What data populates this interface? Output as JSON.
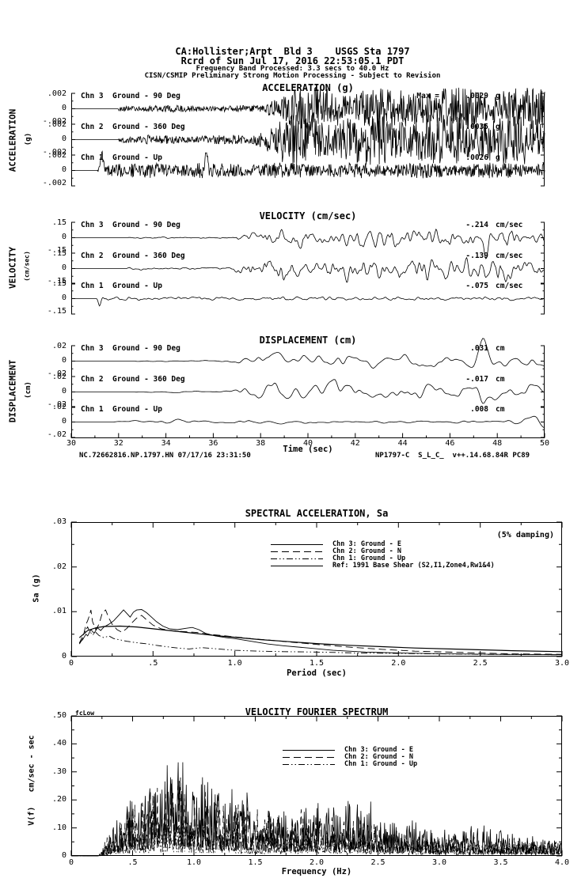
{
  "header": {
    "line1": "CA:Hollister;Arpt  Bld 3    USGS Sta 1797",
    "line2": "Rcrd of Sun Jul 17, 2016 22:53:05.1 PDT",
    "line3": "Frequency Band Processed: 3.3 secs to 40.0 Hz",
    "line4": "CISN/CSMIP Preliminary Strong Motion Processing - Subject to Revision"
  },
  "footer": {
    "left": "NC.72662816.NP.1797.HN 07/17/16 23:31:50",
    "right": "NP1797-C  S_L_C_  v++.14.68.84R PC89"
  },
  "time_axis": {
    "label": "Time (sec)",
    "ticks": [
      "30",
      "32",
      "34",
      "36",
      "38",
      "40",
      "42",
      "44",
      "46",
      "48",
      "50"
    ],
    "min": 30,
    "max": 50
  },
  "chart_data": [
    {
      "type": "line",
      "title": "ACCELERATION (g)",
      "group_label": "ACCELERATION",
      "group_units": "(g)",
      "ytick_labels": [
        ".002",
        "0",
        "-.002"
      ],
      "xlim": [
        30,
        50
      ],
      "n": 900,
      "channels": [
        {
          "label": "Chn 3  Ground - 90 Deg",
          "max_prefix": "Max =",
          "max_value": ".0029",
          "max_unit": "g",
          "peak": 1.45,
          "seed": 301,
          "quiet": 0.1,
          "calm": 0.4,
          "small": 0.16,
          "smooth": 0,
          "spikes": []
        },
        {
          "label": "Chn 2  Ground - 360 Deg",
          "max_prefix": "",
          "max_value": ".0035",
          "max_unit": "g",
          "peak": 1.75,
          "seed": 302,
          "quiet": 0.1,
          "calm": 0.38,
          "small": 0.18,
          "smooth": 0,
          "spikes": []
        },
        {
          "label": "Chn 1  Ground - Up",
          "max_prefix": "",
          "max_value": ".0026",
          "max_unit": "g",
          "peak": 1.3,
          "seed": 303,
          "quiet": 0.055,
          "calm": 0.98,
          "small": 0.5,
          "smooth": 0,
          "spikes": [
            {
              "at": 0.065,
              "amp": 0.9,
              "w": 0.004
            },
            {
              "at": 0.285,
              "amp": 1.1,
              "w": 0.003
            }
          ]
        }
      ]
    },
    {
      "type": "line",
      "title": "VELOCITY (cm/sec)",
      "group_label": "VELOCITY",
      "group_units": "(cm/sec)",
      "ytick_labels": [
        ".15",
        "0",
        "-.15"
      ],
      "xlim": [
        30,
        50
      ],
      "n": 620,
      "channels": [
        {
          "label": "Chn 3  Ground - 90 Deg",
          "max_prefix": "",
          "max_value": "-.214",
          "max_unit": "cm/sec",
          "peak": 1.43,
          "seed": 311,
          "quiet": 0.12,
          "calm": 0.34,
          "small": 0.1,
          "smooth": 3,
          "spikes": [
            {
              "at": 0.875,
              "amp": -1.2,
              "w": 0.006
            }
          ]
        },
        {
          "label": "Chn 2  Ground - 360 Deg",
          "max_prefix": "",
          "max_value": "-.139",
          "max_unit": "cm/sec",
          "peak": 0.93,
          "seed": 312,
          "quiet": 0.12,
          "calm": 0.33,
          "small": 0.1,
          "smooth": 3,
          "spikes": []
        },
        {
          "label": "Chn 1  Ground - Up",
          "max_prefix": "",
          "max_value": "-.075",
          "max_unit": "cm/sec",
          "peak": 0.5,
          "seed": 313,
          "quiet": 0.055,
          "calm": 0.95,
          "small": 0.42,
          "smooth": 3,
          "spikes": [
            {
              "at": 0.06,
              "amp": -0.8,
              "w": 0.004
            }
          ]
        }
      ]
    },
    {
      "type": "line",
      "title": "DISPLACEMENT (cm)",
      "group_label": "DISPLACEMENT",
      "group_units": "(cm)",
      "ytick_labels": [
        ".02",
        "0",
        "-.02"
      ],
      "xlim": [
        30,
        50
      ],
      "n": 360,
      "channels": [
        {
          "label": "Chn 3  Ground - 90 Deg",
          "max_prefix": "",
          "max_value": ".031",
          "max_unit": "cm",
          "peak": 1.55,
          "seed": 321,
          "quiet": 0.14,
          "calm": 0.33,
          "small": 0.08,
          "smooth": 5,
          "spikes": [
            {
              "at": 0.868,
              "amp": 1.3,
              "w": 0.012
            }
          ]
        },
        {
          "label": "Chn 2  Ground - 360 Deg",
          "max_prefix": "",
          "max_value": "-.017",
          "max_unit": "cm",
          "peak": 0.85,
          "seed": 322,
          "quiet": 0.14,
          "calm": 0.32,
          "small": 0.08,
          "smooth": 5,
          "spikes": []
        },
        {
          "label": "Chn 1  Ground - Up",
          "max_prefix": "",
          "max_value": ".008",
          "max_unit": "cm",
          "peak": 0.4,
          "seed": 323,
          "quiet": 0.1,
          "calm": 0.9,
          "small": 0.3,
          "smooth": 5,
          "spikes": []
        }
      ]
    },
    {
      "type": "line",
      "title": "SPECTRAL ACCELERATION, Sa",
      "damping_note": "(5% damping)",
      "xlabel": "Period (sec)",
      "ylabel": "Sa (g)",
      "xlim": [
        0,
        3
      ],
      "ylim": [
        0,
        0.03
      ],
      "xticks": [
        "0",
        ".5",
        "1.0",
        "1.5",
        "2.0",
        "2.5",
        "3.0"
      ],
      "yticks": [
        ".03",
        ".02",
        ".01",
        "0"
      ],
      "series": [
        {
          "name": "Chn 3: Ground - E",
          "dash": "solid",
          "points": [
            [
              0.05,
              0.003
            ],
            [
              0.07,
              0.0038
            ],
            [
              0.09,
              0.005
            ],
            [
              0.1,
              0.0046
            ],
            [
              0.12,
              0.006
            ],
            [
              0.14,
              0.0052
            ],
            [
              0.16,
              0.0064
            ],
            [
              0.18,
              0.0058
            ],
            [
              0.2,
              0.0066
            ],
            [
              0.23,
              0.0072
            ],
            [
              0.26,
              0.008
            ],
            [
              0.29,
              0.0092
            ],
            [
              0.32,
              0.0104
            ],
            [
              0.34,
              0.0096
            ],
            [
              0.36,
              0.0088
            ],
            [
              0.38,
              0.0099
            ],
            [
              0.4,
              0.0104
            ],
            [
              0.43,
              0.0105
            ],
            [
              0.46,
              0.0098
            ],
            [
              0.49,
              0.0088
            ],
            [
              0.52,
              0.0078
            ],
            [
              0.56,
              0.0068
            ],
            [
              0.6,
              0.0062
            ],
            [
              0.65,
              0.006
            ],
            [
              0.7,
              0.0063
            ],
            [
              0.74,
              0.0065
            ],
            [
              0.78,
              0.006
            ],
            [
              0.82,
              0.0052
            ],
            [
              0.88,
              0.0046
            ],
            [
              0.95,
              0.0042
            ],
            [
              1.0,
              0.004
            ],
            [
              1.1,
              0.0034
            ],
            [
              1.2,
              0.0028
            ],
            [
              1.3,
              0.0024
            ],
            [
              1.45,
              0.0019
            ],
            [
              1.6,
              0.0014
            ],
            [
              1.8,
              0.001
            ],
            [
              2.0,
              0.0008
            ],
            [
              2.3,
              0.0006
            ],
            [
              2.6,
              0.0005
            ],
            [
              3.0,
              0.0004
            ]
          ]
        },
        {
          "name": "Chn 2: Ground - N",
          "dash": "longdash",
          "points": [
            [
              0.05,
              0.0028
            ],
            [
              0.07,
              0.004
            ],
            [
              0.09,
              0.0072
            ],
            [
              0.1,
              0.008
            ],
            [
              0.11,
              0.009
            ],
            [
              0.12,
              0.0104
            ],
            [
              0.13,
              0.0078
            ],
            [
              0.15,
              0.006
            ],
            [
              0.17,
              0.0072
            ],
            [
              0.19,
              0.0098
            ],
            [
              0.21,
              0.0104
            ],
            [
              0.23,
              0.0086
            ],
            [
              0.25,
              0.0072
            ],
            [
              0.28,
              0.006
            ],
            [
              0.31,
              0.0054
            ],
            [
              0.34,
              0.0063
            ],
            [
              0.37,
              0.0075
            ],
            [
              0.4,
              0.0086
            ],
            [
              0.43,
              0.0092
            ],
            [
              0.46,
              0.0082
            ],
            [
              0.5,
              0.007
            ],
            [
              0.55,
              0.0062
            ],
            [
              0.6,
              0.0058
            ],
            [
              0.68,
              0.0056
            ],
            [
              0.76,
              0.0054
            ],
            [
              0.84,
              0.005
            ],
            [
              0.92,
              0.0047
            ],
            [
              1.0,
              0.0044
            ],
            [
              1.1,
              0.004
            ],
            [
              1.2,
              0.0037
            ],
            [
              1.35,
              0.0032
            ],
            [
              1.5,
              0.0027
            ],
            [
              1.7,
              0.0021
            ],
            [
              1.9,
              0.0016
            ],
            [
              2.1,
              0.0012
            ],
            [
              2.4,
              0.0009
            ],
            [
              2.7,
              0.0006
            ],
            [
              3.0,
              0.0005
            ]
          ]
        },
        {
          "name": "Chn 1: Ground - Up",
          "dash": "dashdotdot",
          "points": [
            [
              0.05,
              0.003
            ],
            [
              0.07,
              0.0046
            ],
            [
              0.09,
              0.006
            ],
            [
              0.1,
              0.0066
            ],
            [
              0.11,
              0.0058
            ],
            [
              0.13,
              0.0048
            ],
            [
              0.15,
              0.0054
            ],
            [
              0.17,
              0.0047
            ],
            [
              0.2,
              0.0042
            ],
            [
              0.23,
              0.0046
            ],
            [
              0.26,
              0.004
            ],
            [
              0.3,
              0.0037
            ],
            [
              0.34,
              0.0034
            ],
            [
              0.38,
              0.0032
            ],
            [
              0.42,
              0.003
            ],
            [
              0.47,
              0.0028
            ],
            [
              0.52,
              0.0025
            ],
            [
              0.58,
              0.0022
            ],
            [
              0.65,
              0.0019
            ],
            [
              0.72,
              0.0017
            ],
            [
              0.8,
              0.002
            ],
            [
              0.9,
              0.0017
            ],
            [
              1.0,
              0.0014
            ],
            [
              1.15,
              0.0012
            ],
            [
              1.3,
              0.0011
            ],
            [
              1.5,
              0.001
            ],
            [
              1.75,
              0.0008
            ],
            [
              2.0,
              0.0007
            ],
            [
              2.5,
              0.0005
            ],
            [
              3.0,
              0.0004
            ]
          ]
        },
        {
          "name": "Ref: 1991 Base Shear (S2,I1,Zone4,Rw1&4)",
          "dash": "solid",
          "points": [
            [
              0.05,
              0.0042
            ],
            [
              0.1,
              0.0058
            ],
            [
              0.15,
              0.0064
            ],
            [
              0.2,
              0.0067
            ],
            [
              0.3,
              0.0068
            ],
            [
              0.4,
              0.0066
            ],
            [
              0.5,
              0.0062
            ],
            [
              0.6,
              0.0058
            ],
            [
              0.7,
              0.0054
            ],
            [
              0.8,
              0.005
            ],
            [
              0.9,
              0.0046
            ],
            [
              1.0,
              0.0043
            ],
            [
              1.15,
              0.0038
            ],
            [
              1.3,
              0.0034
            ],
            [
              1.5,
              0.0029
            ],
            [
              1.7,
              0.0025
            ],
            [
              1.9,
              0.0022
            ],
            [
              2.1,
              0.0019
            ],
            [
              2.4,
              0.0016
            ],
            [
              2.7,
              0.0013
            ],
            [
              3.0,
              0.0011
            ]
          ]
        }
      ]
    },
    {
      "type": "line",
      "title": "VELOCITY FOURIER SPECTRUM",
      "marker": "fcLow",
      "xlabel": "Frequency (Hz)",
      "ylabel": "V(f)   cm/sec - sec",
      "xlim": [
        0,
        4
      ],
      "ylim": [
        0,
        0.5
      ],
      "xticks": [
        "0",
        ".5",
        "1.0",
        "1.5",
        "2.0",
        "2.5",
        "3.0",
        "3.5",
        "4.0"
      ],
      "yticks": [
        ".50",
        ".40",
        ".30",
        ".20",
        ".10",
        "0"
      ],
      "series": [
        {
          "name": "Chn 3: Ground - E",
          "dash": "solid",
          "seed": 41,
          "envelope": [
            [
              0.22,
              0
            ],
            [
              0.35,
              0.1
            ],
            [
              0.5,
              0.22
            ],
            [
              0.7,
              0.25
            ],
            [
              0.9,
              0.35
            ],
            [
              1.1,
              0.25
            ],
            [
              1.4,
              0.2
            ],
            [
              1.7,
              0.15
            ],
            [
              2.0,
              0.17
            ],
            [
              2.3,
              0.2
            ],
            [
              2.6,
              0.13
            ],
            [
              3.0,
              0.08
            ],
            [
              3.3,
              0.1
            ],
            [
              3.6,
              0.07
            ],
            [
              4.0,
              0.06
            ]
          ]
        },
        {
          "name": "Chn 2: Ground - N",
          "dash": "longdash",
          "seed": 42,
          "envelope": [
            [
              0.22,
              0
            ],
            [
              0.4,
              0.15
            ],
            [
              0.6,
              0.22
            ],
            [
              0.8,
              0.28
            ],
            [
              1.0,
              0.22
            ],
            [
              1.3,
              0.18
            ],
            [
              1.6,
              0.14
            ],
            [
              2.0,
              0.15
            ],
            [
              2.4,
              0.12
            ],
            [
              2.8,
              0.08
            ],
            [
              3.2,
              0.06
            ],
            [
              4.0,
              0.05
            ]
          ]
        },
        {
          "name": "Chn 1: Ground - Up",
          "dash": "dashdotdot",
          "seed": 43,
          "envelope": [
            [
              0.22,
              0
            ],
            [
              0.4,
              0.08
            ],
            [
              0.6,
              0.1
            ],
            [
              0.9,
              0.12
            ],
            [
              1.2,
              0.1
            ],
            [
              1.6,
              0.08
            ],
            [
              2.0,
              0.09
            ],
            [
              2.5,
              0.07
            ],
            [
              3.0,
              0.05
            ],
            [
              4.0,
              0.04
            ]
          ]
        }
      ]
    }
  ]
}
